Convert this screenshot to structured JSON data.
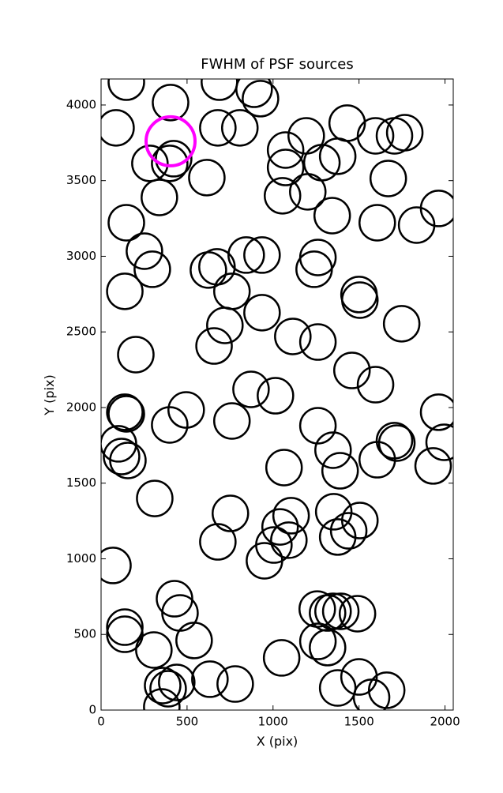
{
  "chart_data": {
    "type": "scatter",
    "title": "FWHM of PSF sources",
    "x_label": "X (pix)",
    "y_label": "Y (pix)",
    "xlim": [
      0,
      2048
    ],
    "ylim": [
      0,
      4172
    ],
    "xticks": [
      0,
      500,
      1000,
      1500,
      2000
    ],
    "yticks": [
      0,
      500,
      1000,
      1500,
      2000,
      2500,
      3000,
      3500,
      4000
    ],
    "marker": "open-circle",
    "series": [
      {
        "color": "#000000",
        "x": [
          147,
          87,
          404,
          688,
          890,
          927,
          679,
          807,
          284,
          399,
          422,
          339,
          615,
          147,
          1073,
          1193,
          1284,
          1376,
          1073,
          1055,
          1202,
          1431,
          1596,
          1706,
          1766,
          1670,
          1344,
          1606,
          1835,
          1963,
          252,
          298,
          138,
          674,
          624,
          844,
          936,
          1261,
          1239,
          761,
          936,
          720,
          657,
          1500,
          1505,
          1748,
          1115,
          1261,
          202,
          1459,
          1596,
          872,
          1014,
          138,
          147,
          495,
          399,
          761,
          1261,
          1963,
          1995,
          101,
          119,
          156,
          1349,
          1706,
          1720,
          1931,
          1606,
          1390,
          1064,
          312,
          752,
          679,
          1105,
          1041,
          1092,
          1005,
          950,
          1353,
          1505,
          1440,
          1376,
          69,
          427,
          459,
          541,
          307,
          138,
          138,
          1257,
          1317,
          1349,
          1394,
          1491,
          1261,
          1317,
          1050,
          633,
          780,
          440,
          358,
          390,
          353,
          1376,
          1500,
          1573,
          1661
        ],
        "y": [
          4151,
          3849,
          4016,
          4151,
          4104,
          4042,
          3849,
          3849,
          3614,
          3614,
          3645,
          3389,
          3520,
          3222,
          3702,
          3796,
          3619,
          3661,
          3587,
          3400,
          3426,
          3880,
          3796,
          3796,
          3817,
          3514,
          3269,
          3222,
          3206,
          3316,
          3034,
          2914,
          2768,
          2930,
          2909,
          3008,
          3008,
          2992,
          2914,
          2768,
          2627,
          2543,
          2407,
          2747,
          2710,
          2554,
          2470,
          2433,
          2350,
          2245,
          2151,
          2120,
          2078,
          1969,
          1958,
          1984,
          1885,
          1911,
          1880,
          1969,
          1770,
          1760,
          1676,
          1650,
          1718,
          1781,
          1765,
          1614,
          1655,
          1582,
          1603,
          1399,
          1300,
          1112,
          1285,
          1211,
          1123,
          1091,
          987,
          1311,
          1253,
          1185,
          1144,
          956,
          736,
          642,
          460,
          397,
          548,
          501,
          668,
          642,
          653,
          653,
          637,
          454,
          413,
          345,
          204,
          172,
          183,
          162,
          141,
          21,
          146,
          219,
          84,
          131
        ]
      },
      {
        "color": "#ff00ff",
        "x": [
          404
        ],
        "y": [
          3760
        ]
      }
    ]
  }
}
